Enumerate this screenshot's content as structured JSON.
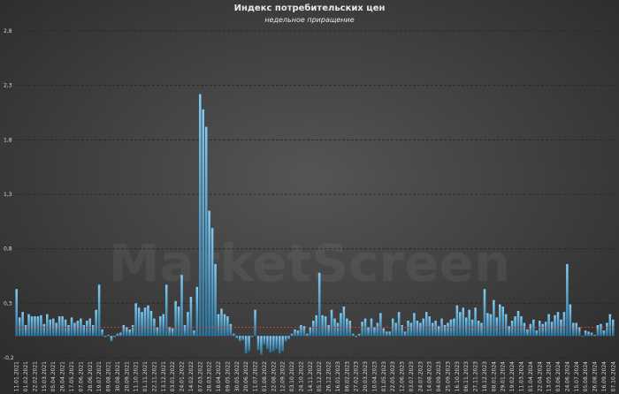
{
  "chart_data": {
    "type": "bar",
    "title": "Индекс потребительских цен",
    "subtitle": "недельное приращение",
    "watermark": "MarketScreen",
    "color": "#3fb0ee",
    "grid": true,
    "reference_line": {
      "value": 0.08,
      "color": "#d03a3a"
    },
    "ylim": [
      -0.2,
      2.8
    ],
    "yticks": [
      {
        "value": -0.2,
        "label": "-0,2"
      },
      {
        "value": 0.3,
        "label": "0,3"
      },
      {
        "value": 0.8,
        "label": "0,8"
      },
      {
        "value": 1.3,
        "label": "1,3"
      },
      {
        "value": 1.8,
        "label": "1,8"
      },
      {
        "value": 2.3,
        "label": "2,3"
      },
      {
        "value": 2.8,
        "label": "2,8"
      }
    ],
    "categories": [
      "11.01.2021",
      null,
      null,
      "01.02.2021",
      null,
      null,
      "22.02.2021",
      null,
      null,
      "15.03.2021",
      null,
      null,
      "05.04.2021",
      null,
      null,
      "26.04.2021",
      null,
      null,
      "17.05.2021",
      null,
      null,
      "07.06.2021",
      null,
      null,
      "28.06.2021",
      null,
      null,
      "19.07.2021",
      null,
      null,
      "09.08.2021",
      null,
      null,
      "30.08.2021",
      null,
      null,
      "20.09.2021",
      null,
      null,
      "11.10.2021",
      null,
      null,
      "01.11.2021",
      null,
      null,
      "22.11.2021",
      null,
      null,
      "13.12.2021",
      null,
      null,
      "03.01.2022",
      null,
      null,
      "24.01.2022",
      null,
      null,
      "14.02.2022",
      null,
      null,
      "07.03.2022",
      null,
      null,
      "28.03.2022",
      null,
      null,
      "18.04.2022",
      null,
      null,
      "09.05.2022",
      null,
      null,
      "30.05.2022",
      null,
      null,
      "20.06.2022",
      null,
      null,
      "11.07.2022",
      null,
      null,
      "01.08.2022",
      null,
      null,
      "22.08.2022",
      null,
      null,
      "12.09.2022",
      null,
      null,
      "03.10.2022",
      null,
      null,
      "24.10.2022",
      null,
      null,
      "14.11.2022",
      null,
      null,
      "05.12.2022",
      null,
      null,
      "26.12.2022",
      null,
      null,
      "16.01.2023",
      null,
      null,
      "06.02.2023",
      null,
      null,
      "27.02.2023",
      null,
      null,
      "20.03.2023",
      null,
      null,
      "10.04.2023",
      null,
      null,
      "01.05.2023",
      null,
      null,
      "22.05.2023",
      null,
      null,
      "12.06.2023",
      null,
      null,
      "03.07.2023",
      null,
      null,
      "24.07.2023",
      null,
      null,
      "14.08.2023",
      null,
      null,
      "04.09.2023",
      null,
      null,
      "25.09.2023",
      null,
      null,
      "16.10.2023",
      null,
      null,
      "06.11.2023",
      null,
      null,
      "27.11.2023",
      null,
      null,
      "18.12.2023",
      null,
      null,
      "08.01.2024",
      null,
      null,
      "29.01.2024",
      null,
      null,
      "19.02.2024",
      null,
      null,
      "11.03.2024",
      null,
      null,
      "01.04.2024",
      null,
      null,
      "22.04.2024",
      null,
      null,
      "13.05.2024",
      null,
      null,
      "03.06.2024",
      null,
      null,
      "24.06.2024",
      null,
      null,
      "15.07.2024",
      null,
      null,
      "05.08.2024",
      null,
      null,
      "26.08.2024",
      null,
      null,
      "16.09.2024",
      null,
      null,
      "07.10.2024"
    ],
    "values": [
      0.43,
      0.17,
      0.22,
      0.1,
      0.2,
      0.18,
      0.18,
      0.18,
      0.19,
      0.11,
      0.2,
      0.15,
      0.16,
      0.12,
      0.18,
      0.18,
      0.15,
      0.1,
      0.17,
      0.12,
      0.14,
      0.16,
      0.1,
      0.14,
      0.16,
      0.1,
      0.24,
      0.47,
      0.06,
      -0.01,
      0.01,
      -0.05,
      -0.01,
      0.02,
      0.03,
      0.1,
      0.08,
      0.06,
      0.1,
      0.3,
      0.26,
      0.22,
      0.26,
      0.28,
      0.23,
      0.16,
      0.08,
      0.18,
      0.2,
      0.47,
      0.08,
      0.07,
      0.32,
      0.27,
      0.56,
      0.1,
      0.22,
      0.36,
      0.05,
      0.45,
      2.22,
      2.08,
      1.92,
      1.15,
      0.99,
      0.66,
      0.2,
      0.25,
      0.2,
      0.18,
      0.11,
      0.02,
      -0.02,
      -0.05,
      -0.04,
      -0.16,
      -0.14,
      -0.01,
      0.24,
      -0.13,
      -0.17,
      -0.08,
      -0.12,
      -0.15,
      -0.14,
      -0.12,
      -0.16,
      -0.14,
      -0.05,
      -0.03,
      0.02,
      0.06,
      0.05,
      0.1,
      0.09,
      0.02,
      0.08,
      0.14,
      0.19,
      0.58,
      0.19,
      0.18,
      0.1,
      0.24,
      0.16,
      0.12,
      0.21,
      0.27,
      0.16,
      0.14,
      0.02,
      -0.01,
      0.02,
      0.13,
      0.16,
      0.08,
      0.16,
      0.08,
      0.12,
      0.21,
      0.07,
      0.04,
      0.04,
      0.16,
      0.12,
      0.22,
      0.1,
      0.04,
      0.14,
      0.12,
      0.21,
      0.14,
      0.12,
      0.16,
      0.22,
      0.18,
      0.12,
      0.14,
      0.09,
      0.16,
      0.1,
      0.12,
      0.15,
      0.16,
      0.28,
      0.22,
      0.26,
      0.17,
      0.24,
      0.15,
      0.26,
      0.14,
      0.12,
      0.43,
      0.21,
      0.2,
      0.33,
      0.17,
      0.29,
      0.27,
      0.2,
      0.09,
      0.14,
      0.18,
      0.23,
      0.18,
      0.12,
      0.06,
      0.11,
      0.15,
      0.05,
      0.14,
      0.11,
      0.13,
      0.2,
      0.13,
      0.19,
      0.22,
      0.15,
      0.22,
      0.66,
      0.29,
      0.12,
      0.12,
      0.08,
      0.0,
      0.05,
      0.04,
      0.03,
      0.01,
      0.1,
      0.11,
      0.05,
      0.12,
      0.2,
      0.15
    ]
  }
}
